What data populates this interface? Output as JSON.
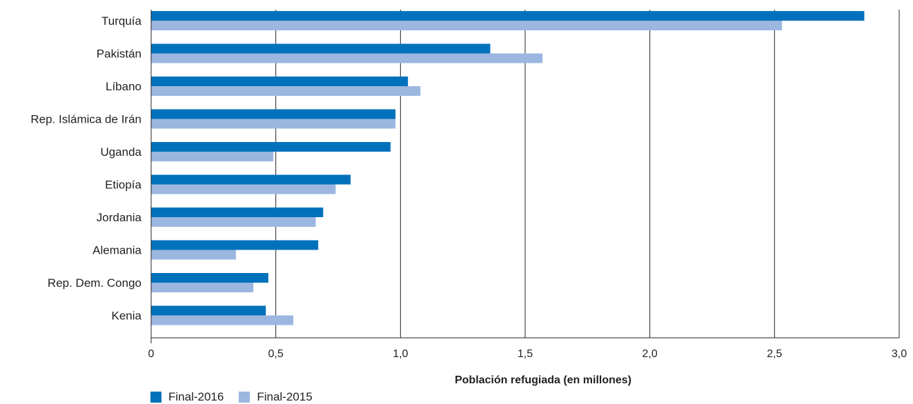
{
  "chart_data": {
    "type": "bar",
    "orientation": "horizontal",
    "categories": [
      "Turquía",
      "Pakistán",
      "Líbano",
      "Rep. Islámica de Irán",
      "Uganda",
      "Etiopía",
      "Jordania",
      "Alemania",
      "Rep. Dem. Congo",
      "Kenia"
    ],
    "series": [
      {
        "name": "Final-2016",
        "color": "#0072bc",
        "values": [
          2.86,
          1.36,
          1.03,
          0.98,
          0.96,
          0.8,
          0.69,
          0.67,
          0.47,
          0.46
        ]
      },
      {
        "name": "Final-2015",
        "color": "#9bb7e0",
        "values": [
          2.53,
          1.57,
          1.08,
          0.98,
          0.49,
          0.74,
          0.66,
          0.34,
          0.41,
          0.57
        ]
      }
    ],
    "xlabel": "Población refugiada (en millones)",
    "ylabel": "",
    "xlim": [
      0,
      3.0
    ],
    "xticks": [
      {
        "value": 0,
        "label": "0"
      },
      {
        "value": 0.5,
        "label": "0,5"
      },
      {
        "value": 1.0,
        "label": "1,0"
      },
      {
        "value": 1.5,
        "label": "1,5"
      },
      {
        "value": 2.0,
        "label": "2,0"
      },
      {
        "value": 2.5,
        "label": "2,5"
      },
      {
        "value": 3.0,
        "label": "3,0"
      }
    ],
    "grid": "vertical",
    "legend": "bottom-left"
  }
}
